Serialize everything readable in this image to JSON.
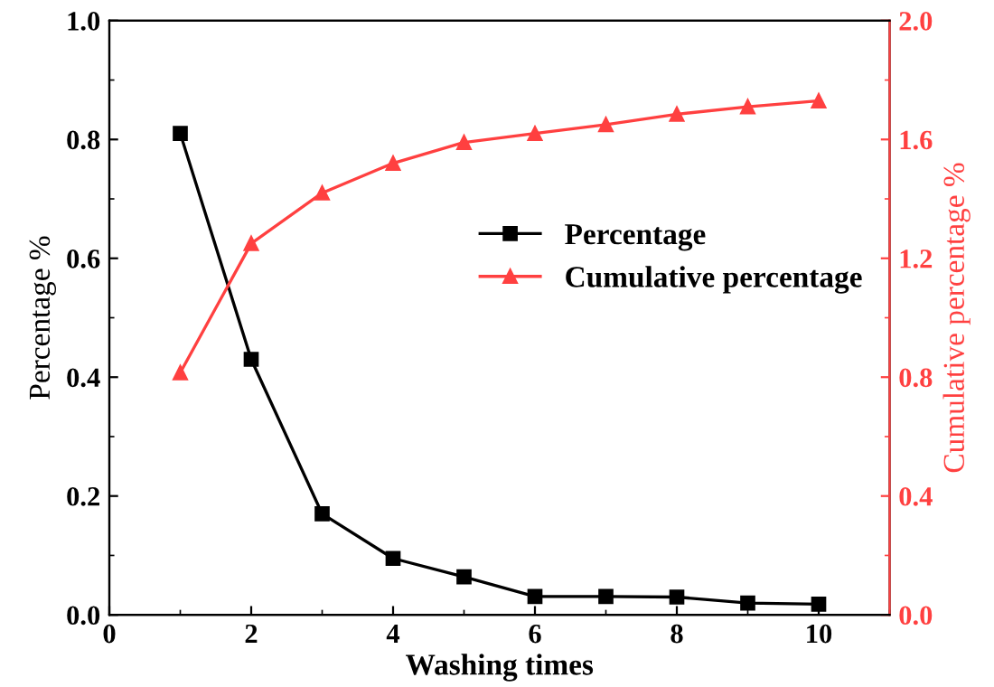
{
  "chart_data": {
    "type": "line",
    "xlabel": "Washing times",
    "ylabel": "Percentage %",
    "y2label": "Cumulative percentage %",
    "x": [
      1,
      2,
      3,
      4,
      5,
      6,
      7,
      8,
      9,
      10
    ],
    "series": [
      {
        "name": "Percentage",
        "color": "#000000",
        "marker": "square",
        "values": [
          0.81,
          0.43,
          0.17,
          0.095,
          0.064,
          0.031,
          0.031,
          0.03,
          0.02,
          0.018
        ]
      },
      {
        "name": "Cumulative percentage",
        "color": "#ff4040",
        "marker": "triangle",
        "axis": "y2",
        "values": [
          0.815,
          1.25,
          1.42,
          1.52,
          1.59,
          1.62,
          1.65,
          1.685,
          1.71,
          1.73
        ]
      }
    ],
    "xlim": [
      0,
      11
    ],
    "xticks": [
      0,
      2,
      4,
      6,
      8,
      10
    ],
    "ylim": [
      0,
      1.0
    ],
    "yticks": [
      {
        "value": 0,
        "label": "0.0"
      },
      0.2,
      0.4,
      0.6,
      0.8,
      {
        "value": 1.0,
        "label": "1.0"
      }
    ],
    "y2lim": [
      0,
      2.0
    ],
    "y2ticks": [
      {
        "value": 0,
        "label": "0.0"
      },
      0.4,
      0.8,
      1.2,
      1.6,
      {
        "value": 2.0,
        "label": "2.0"
      }
    ],
    "legend": "center right",
    "grid": false,
    "line_style": "solid"
  }
}
